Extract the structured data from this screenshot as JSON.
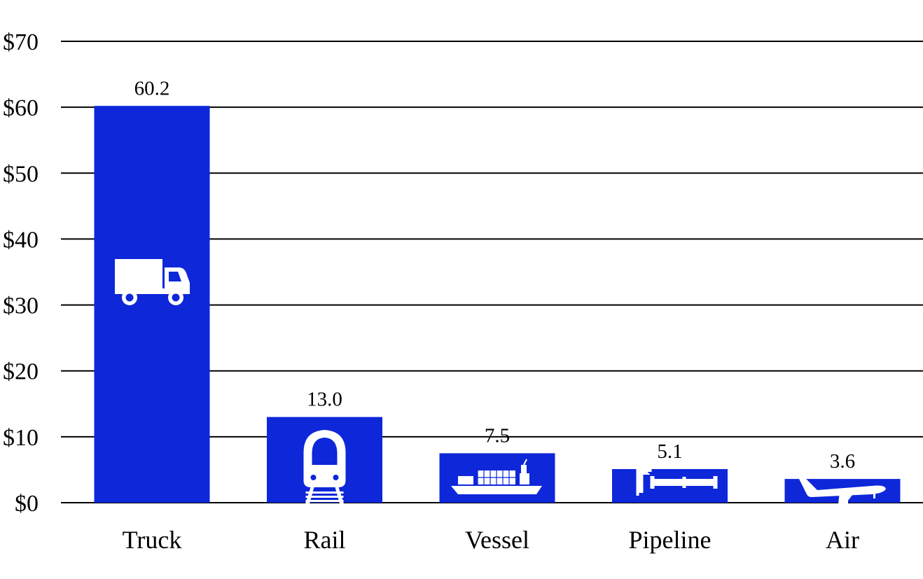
{
  "chart_data": {
    "type": "bar",
    "categories": [
      "Truck",
      "Rail",
      "Vessel",
      "Pipeline",
      "Air"
    ],
    "values": [
      60.2,
      13.0,
      7.5,
      5.1,
      3.6
    ],
    "value_labels": [
      "60.2",
      "13.0",
      "7.5",
      "5.1",
      "3.6"
    ],
    "icons": [
      "truck-icon",
      "train-icon",
      "ship-icon",
      "pipeline-icon",
      "airplane-icon"
    ],
    "yticks": [
      0,
      10,
      20,
      30,
      40,
      50,
      60,
      70
    ],
    "ytick_labels": [
      "$0",
      "$10",
      "$20",
      "$30",
      "$40",
      "$50",
      "$60",
      "$70"
    ],
    "ylim": [
      0,
      70
    ],
    "grid": true,
    "legend": "none",
    "title": "",
    "xlabel": "",
    "ylabel": "",
    "colors": {
      "bar": "#0d27d9",
      "icon": "#ffffff",
      "grid": "#000000"
    }
  }
}
